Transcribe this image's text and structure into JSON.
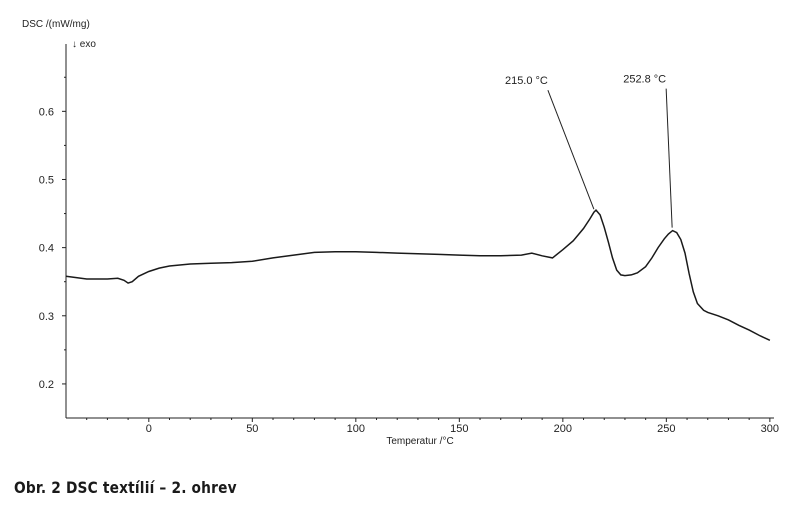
{
  "caption": "Obr. 2 DSC textílií – 2. ohrev",
  "chart_data": {
    "type": "line",
    "ylabel": "DSC /(mW/mg)",
    "ylabel_sub": "↓ exo",
    "xlabel": "Temperatur /°C",
    "xlim": [
      -40,
      302
    ],
    "ylim": [
      0.15,
      0.69
    ],
    "xticks": [
      0,
      50,
      100,
      150,
      200,
      250,
      300
    ],
    "yticks": [
      0.2,
      0.3,
      0.4,
      0.5,
      0.6
    ],
    "xtick_labels": [
      "0",
      "50",
      "100",
      "150",
      "200",
      "250",
      "300"
    ],
    "ytick_labels": [
      "0.2",
      "0.3",
      "0.4",
      "0.5",
      "0.6"
    ],
    "series": [
      {
        "color": "#1a1a1a",
        "x": [
          -40,
          -30,
          -20,
          -15,
          -12,
          -10,
          -8,
          -5,
          0,
          5,
          10,
          20,
          30,
          40,
          50,
          60,
          70,
          80,
          90,
          100,
          110,
          120,
          130,
          140,
          150,
          160,
          170,
          180,
          185,
          190,
          195,
          200,
          205,
          210,
          213,
          215,
          216,
          218,
          220,
          222,
          224,
          226,
          228,
          230,
          233,
          236,
          240,
          243,
          246,
          249,
          251,
          253,
          255,
          257,
          259,
          261,
          263,
          265,
          268,
          270,
          275,
          280,
          285,
          290,
          295,
          300
        ],
        "y": [
          0.358,
          0.354,
          0.354,
          0.355,
          0.352,
          0.348,
          0.35,
          0.358,
          0.365,
          0.37,
          0.373,
          0.376,
          0.377,
          0.378,
          0.38,
          0.385,
          0.389,
          0.393,
          0.394,
          0.394,
          0.393,
          0.392,
          0.391,
          0.39,
          0.389,
          0.388,
          0.388,
          0.389,
          0.392,
          0.388,
          0.385,
          0.397,
          0.41,
          0.428,
          0.442,
          0.452,
          0.455,
          0.448,
          0.43,
          0.408,
          0.385,
          0.367,
          0.36,
          0.359,
          0.36,
          0.363,
          0.372,
          0.385,
          0.4,
          0.413,
          0.42,
          0.425,
          0.422,
          0.412,
          0.392,
          0.362,
          0.335,
          0.318,
          0.308,
          0.305,
          0.3,
          0.294,
          0.286,
          0.279,
          0.271,
          0.264
        ]
      }
    ],
    "annotations": [
      {
        "label": "215.0 °C",
        "x": 215.0,
        "y": 0.452
      },
      {
        "label": "252.8 °C",
        "x": 252.8,
        "y": 0.425
      }
    ],
    "grid": false
  }
}
